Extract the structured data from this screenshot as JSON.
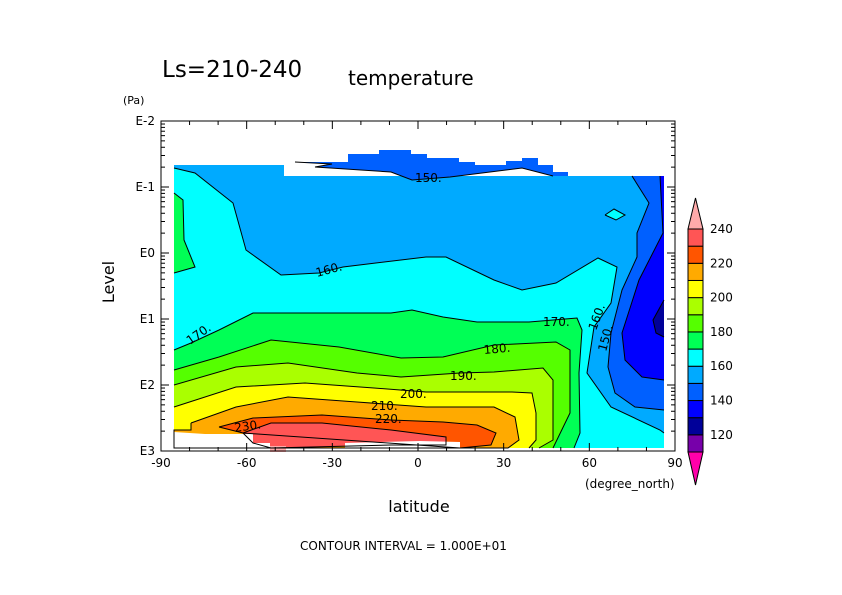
{
  "chart_data": {
    "type": "contour",
    "title": "Ls=210-240",
    "subtitle": "temperature",
    "xlabel": "latitude",
    "xunit": "(degree_north)",
    "ylabel": "Level",
    "yunit": "(Pa)",
    "xlim": [
      -90,
      90
    ],
    "xticks": [
      "-90",
      "-60",
      "-30",
      "0",
      "30",
      "60",
      "90"
    ],
    "y_scale": "log",
    "ylim": [
      1000,
      0.01
    ],
    "yticks": [
      "E-2",
      "E-1",
      "E0",
      "E1",
      "E2",
      "E3"
    ],
    "contour_interval_text": "CONTOUR INTERVAL = 1.000E+01",
    "contour_labels": [
      "150.",
      "160.",
      "170.",
      "170.",
      "160.",
      "150.",
      "180.",
      "190.",
      "200.",
      "210.",
      "220.",
      "230."
    ],
    "colorbar": {
      "tick_labels": [
        "120",
        "140",
        "160",
        "180",
        "200",
        "220",
        "240"
      ],
      "levels": [
        110,
        120,
        130,
        140,
        150,
        160,
        170,
        180,
        190,
        200,
        210,
        220,
        230,
        240
      ],
      "colors": [
        "#7700aa",
        "#000099",
        "#0000ff",
        "#0060ff",
        "#00aaff",
        "#00ffff",
        "#00ff55",
        "#55ff00",
        "#aaff00",
        "#ffff00",
        "#ffaa00",
        "#ff5500",
        "#ff5555"
      ],
      "under_color": "#ff00aa",
      "over_color": "#ffaaaa"
    },
    "summary_field": {
      "description_values": "temperature (K) vs latitude and pressure level",
      "min_approx": 130,
      "max_approx": 235
    }
  }
}
